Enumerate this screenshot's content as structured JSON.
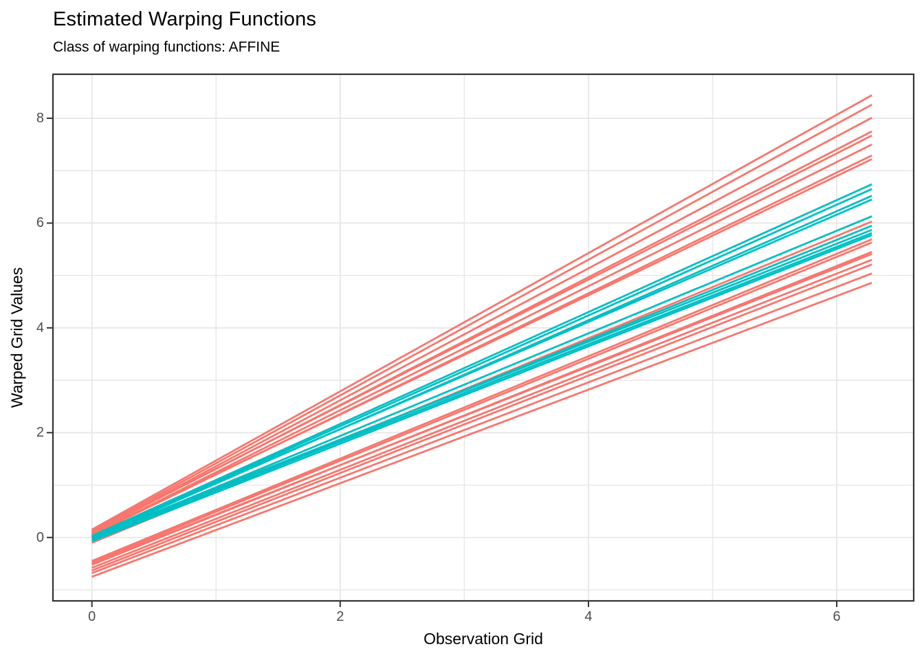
{
  "chart_data": {
    "type": "line",
    "title": "Estimated Warping Functions",
    "subtitle": "Class of warping functions: AFFINE",
    "xlabel": "Observation Grid",
    "ylabel": "Warped Grid Values",
    "x_ticks": [
      0,
      2,
      4,
      6
    ],
    "y_ticks": [
      0,
      2,
      4,
      6,
      8
    ],
    "x_minor_gridlines": [
      1,
      3,
      5
    ],
    "y_minor_gridlines": [
      -1,
      1,
      3,
      5,
      7
    ],
    "xlim": [
      -0.314,
      6.62
    ],
    "ylim": [
      -1.21,
      8.84
    ],
    "x_data_range": [
      0,
      6.283
    ],
    "grid": true,
    "legend_position": "none",
    "colors": {
      "group_1": "#F8766D",
      "group_2": "#00BFC4",
      "gridline": "#E7E7E7",
      "panel_border": "#333333",
      "tick": "#333333",
      "tick_label": "#4d4d4d"
    },
    "series": [
      {
        "group": "group_1",
        "color": "#F8766D",
        "x": [
          0,
          6.283
        ],
        "y": [
          0.15,
          8.44
        ]
      },
      {
        "group": "group_1",
        "color": "#F8766D",
        "x": [
          0,
          6.283
        ],
        "y": [
          0.12,
          8.26
        ]
      },
      {
        "group": "group_1",
        "color": "#F8766D",
        "x": [
          0,
          6.283
        ],
        "y": [
          0.1,
          8.01
        ]
      },
      {
        "group": "group_1",
        "color": "#F8766D",
        "x": [
          0,
          6.283
        ],
        "y": [
          0.09,
          7.75
        ]
      },
      {
        "group": "group_1",
        "color": "#F8766D",
        "x": [
          0,
          6.283
        ],
        "y": [
          0.11,
          7.67
        ]
      },
      {
        "group": "group_1",
        "color": "#F8766D",
        "x": [
          0,
          6.283
        ],
        "y": [
          0.06,
          7.5
        ]
      },
      {
        "group": "group_1",
        "color": "#F8766D",
        "x": [
          0,
          6.283
        ],
        "y": [
          0.05,
          7.29
        ]
      },
      {
        "group": "group_1",
        "color": "#F8766D",
        "x": [
          0,
          6.283
        ],
        "y": [
          0.07,
          7.22
        ]
      },
      {
        "group": "group_1",
        "color": "#F8766D",
        "x": [
          0,
          6.283
        ],
        "y": [
          -0.1,
          6.03
        ]
      },
      {
        "group": "group_1",
        "color": "#F8766D",
        "x": [
          0,
          6.283
        ],
        "y": [
          -0.45,
          5.69
        ]
      },
      {
        "group": "group_1",
        "color": "#F8766D",
        "x": [
          0,
          6.283
        ],
        "y": [
          -0.48,
          5.63
        ]
      },
      {
        "group": "group_1",
        "color": "#F8766D",
        "x": [
          0,
          6.283
        ],
        "y": [
          -0.52,
          5.45
        ]
      },
      {
        "group": "group_1",
        "color": "#F8766D",
        "x": [
          0,
          6.283
        ],
        "y": [
          -0.5,
          5.41
        ]
      },
      {
        "group": "group_1",
        "color": "#F8766D",
        "x": [
          0,
          6.283
        ],
        "y": [
          -0.58,
          5.3
        ]
      },
      {
        "group": "group_1",
        "color": "#F8766D",
        "x": [
          0,
          6.283
        ],
        "y": [
          -0.63,
          5.21
        ]
      },
      {
        "group": "group_1",
        "color": "#F8766D",
        "x": [
          0,
          6.283
        ],
        "y": [
          -0.68,
          5.04
        ]
      },
      {
        "group": "group_1",
        "color": "#F8766D",
        "x": [
          0,
          6.283
        ],
        "y": [
          -0.75,
          4.86
        ]
      },
      {
        "group": "group_2",
        "color": "#00BFC4",
        "x": [
          0,
          6.283
        ],
        "y": [
          0.03,
          6.74
        ]
      },
      {
        "group": "group_2",
        "color": "#00BFC4",
        "x": [
          0,
          6.283
        ],
        "y": [
          0.01,
          6.65
        ]
      },
      {
        "group": "group_2",
        "color": "#00BFC4",
        "x": [
          0,
          6.283
        ],
        "y": [
          -0.01,
          6.52
        ]
      },
      {
        "group": "group_2",
        "color": "#00BFC4",
        "x": [
          0,
          6.283
        ],
        "y": [
          0.02,
          6.45
        ]
      },
      {
        "group": "group_2",
        "color": "#00BFC4",
        "x": [
          0,
          6.283
        ],
        "y": [
          -0.02,
          6.13
        ]
      },
      {
        "group": "group_2",
        "color": "#00BFC4",
        "x": [
          0,
          6.283
        ],
        "y": [
          -0.05,
          5.95
        ]
      },
      {
        "group": "group_2",
        "color": "#00BFC4",
        "x": [
          0,
          6.283
        ],
        "y": [
          0.0,
          5.87
        ]
      },
      {
        "group": "group_2",
        "color": "#00BFC4",
        "x": [
          0,
          6.283
        ],
        "y": [
          -0.03,
          5.81
        ]
      },
      {
        "group": "group_2",
        "color": "#00BFC4",
        "x": [
          0,
          6.283
        ],
        "y": [
          -0.07,
          5.77
        ]
      }
    ]
  }
}
